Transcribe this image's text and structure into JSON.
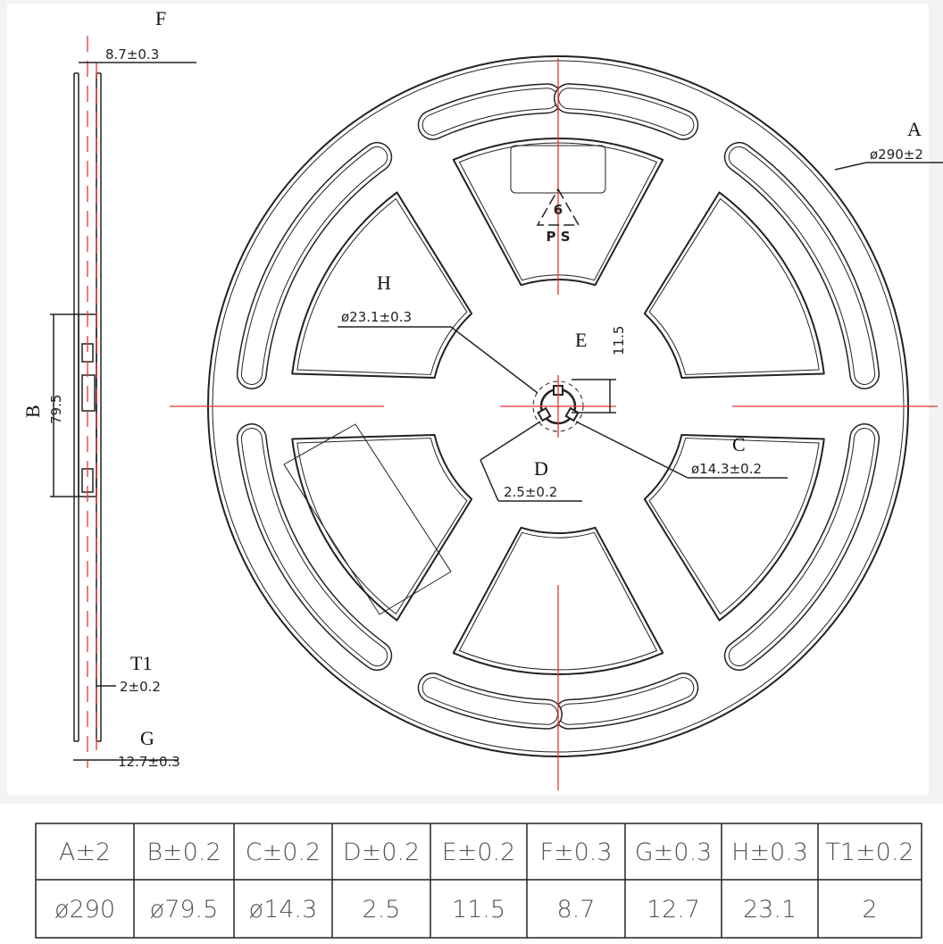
{
  "labels": {
    "F": "F",
    "F_dim": "8.7±0.3",
    "A": "A",
    "A_dim": "ø290±2",
    "H": "H",
    "H_dim": "ø23.1±0.3",
    "E": "E",
    "E_dim": "11.5",
    "C": "C",
    "C_dim": "ø14.3±0.2",
    "D": "D",
    "D_dim": "2.5±0.2",
    "B": "B",
    "B_dim": "79.5",
    "T1": "T1",
    "T1_dim": "2±0.2",
    "G": "G",
    "G_dim": "12.7±0.3",
    "recycle_code": "6",
    "recycle_material": "P S"
  },
  "table": {
    "header": [
      "A±2",
      "B±0.2",
      "C±0.2",
      "D±0.2",
      "E±0.2",
      "F±0.3",
      "G±0.3",
      "H±0.3",
      "T1±0.2"
    ],
    "rows": [
      [
        "ø290",
        "ø79.5",
        "ø14.3",
        "2.5",
        "11.5",
        "8.7",
        "12.7",
        "23.1",
        "2"
      ]
    ]
  }
}
